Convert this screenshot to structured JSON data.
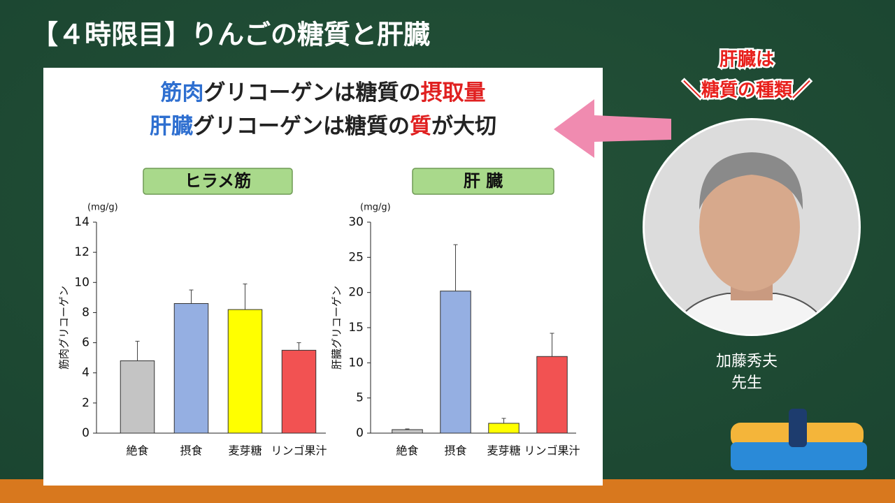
{
  "header": {
    "title": "【４時限目】りんごの糖質と肝臓"
  },
  "slide": {
    "line1": [
      {
        "text": "筋肉",
        "color": "#2e6fd0"
      },
      {
        "text": "グリコーゲンは糖質の",
        "color": "#222222"
      },
      {
        "text": "摂取量",
        "color": "#e02020"
      }
    ],
    "line2": [
      {
        "text": "肝臓",
        "color": "#2e6fd0"
      },
      {
        "text": "グリコーゲンは糖質の",
        "color": "#222222"
      },
      {
        "text": "質",
        "color": "#e02020"
      },
      {
        "text": "が大切",
        "color": "#222222"
      }
    ]
  },
  "side_note": {
    "line1": "肝臓は",
    "line2": "＼糖質の種類／"
  },
  "lecturer": {
    "name": "加藤秀夫",
    "honorific": "先生"
  },
  "chart_data": [
    {
      "type": "bar",
      "title": "ヒラメ筋",
      "unit": "(mg/g)",
      "y_label": "筋肉グリコーゲン",
      "categories": [
        "絶食",
        "摂食",
        "麦芽糖",
        "リンゴ果汁"
      ],
      "values": [
        4.8,
        8.6,
        8.2,
        5.5
      ],
      "errors": [
        1.3,
        0.9,
        1.7,
        0.5
      ],
      "colors": [
        "#c4c4c4",
        "#95afe2",
        "#ffff00",
        "#f25252"
      ],
      "ylim": [
        0,
        14
      ],
      "yticks": [
        0,
        2,
        4,
        6,
        8,
        10,
        12,
        14
      ]
    },
    {
      "type": "bar",
      "title": "肝 臓",
      "unit": "(mg/g)",
      "y_label": "肝臓グリコーゲン",
      "categories": [
        "絶食",
        "摂食",
        "麦芽糖",
        "リンゴ果汁"
      ],
      "values": [
        0.5,
        20.2,
        1.4,
        10.9
      ],
      "errors": [
        0.1,
        6.6,
        0.7,
        3.3
      ],
      "colors": [
        "#c4c4c4",
        "#95afe2",
        "#ffff00",
        "#f25252"
      ],
      "ylim": [
        0,
        30
      ],
      "yticks": [
        0,
        5,
        10,
        15,
        20,
        25,
        30
      ]
    }
  ]
}
